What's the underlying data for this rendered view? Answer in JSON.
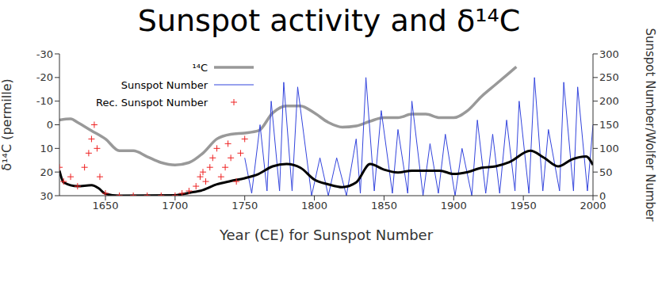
{
  "chart_data": {
    "type": "line",
    "title": "Sunspot activity and δ¹⁴C",
    "x_label": "Year (CE) for Sunspot Number",
    "y_label": "δ¹⁴C (permille)",
    "y2_label": "Sunspot Number/Wolfer Number",
    "xlim": [
      1617,
      2000
    ],
    "xticks": [
      1650,
      1700,
      1750,
      1800,
      1850,
      1900,
      1950,
      2000
    ],
    "ylim": [
      30,
      -30
    ],
    "yticks": [
      -30,
      -20,
      -10,
      0,
      10,
      20,
      30
    ],
    "y2lim": [
      0,
      300
    ],
    "y2ticks": [
      0,
      50,
      100,
      150,
      200,
      250,
      300
    ],
    "grid": false,
    "legend": "upper left",
    "series": [
      {
        "name": "¹⁴C",
        "color": "#999999",
        "type": "line",
        "x": [
          1617,
          1625,
          1630,
          1640,
          1650,
          1660,
          1670,
          1680,
          1690,
          1700,
          1710,
          1720,
          1730,
          1740,
          1750,
          1760,
          1770,
          1780,
          1790,
          1800,
          1810,
          1820,
          1830,
          1840,
          1850,
          1860,
          1870,
          1880,
          1890,
          1900,
          1910,
          1920,
          1930,
          1940,
          1945
        ],
        "values": [
          -2,
          -2.5,
          -1,
          2.5,
          6,
          11,
          11,
          13.5,
          16,
          17,
          16,
          12,
          6,
          4,
          3.5,
          2.5,
          -5,
          -8,
          -8,
          -5,
          -1,
          1,
          0.5,
          -1.5,
          -3,
          -3,
          -4.5,
          -4.5,
          -3,
          -3,
          -6,
          -12,
          -17,
          -22,
          -24.5
        ]
      },
      {
        "name": "Sunspot Number",
        "color": "#3344dd",
        "type": "line",
        "axis": "y2",
        "x": [
          1750,
          1755,
          1761,
          1766,
          1769,
          1775,
          1778,
          1784,
          1788,
          1798,
          1804,
          1810,
          1816,
          1823,
          1830,
          1833,
          1837,
          1843,
          1848,
          1856,
          1860,
          1867,
          1870,
          1878,
          1883,
          1889,
          1894,
          1901,
          1906,
          1913,
          1917,
          1923,
          1928,
          1933,
          1938,
          1944,
          1947,
          1954,
          1958,
          1964,
          1968,
          1976,
          1979,
          1986,
          1989,
          1996,
          2000
        ],
        "values": [
          80,
          5,
          150,
          10,
          200,
          10,
          240,
          10,
          230,
          0,
          80,
          0,
          80,
          0,
          120,
          5,
          250,
          10,
          180,
          5,
          140,
          5,
          200,
          0,
          110,
          5,
          130,
          0,
          100,
          0,
          160,
          5,
          130,
          5,
          160,
          10,
          200,
          5,
          250,
          10,
          140,
          10,
          240,
          10,
          230,
          10,
          150
        ]
      },
      {
        "name": "Rec. Sunspot Number",
        "color": "#ee2222",
        "type": "scatter",
        "marker": "plus",
        "axis": "y2",
        "x": [
          1617,
          1620,
          1625,
          1630,
          1635,
          1638,
          1640,
          1642,
          1644,
          1646,
          1650,
          1660,
          1670,
          1680,
          1690,
          1700,
          1705,
          1710,
          1715,
          1718,
          1720,
          1722,
          1725,
          1727,
          1730,
          1733,
          1736,
          1738,
          1740,
          1744,
          1747,
          1750
        ],
        "values": [
          60,
          30,
          40,
          20,
          60,
          90,
          120,
          150,
          100,
          40,
          5,
          0,
          0,
          0,
          0,
          0,
          5,
          10,
          20,
          40,
          50,
          30,
          60,
          80,
          100,
          40,
          60,
          110,
          80,
          30,
          90,
          120
        ]
      },
      {
        "color": "#000000",
        "type": "line",
        "axis": "y2",
        "x": [
          1617,
          1620,
          1630,
          1640,
          1645,
          1650,
          1660,
          1700,
          1710,
          1720,
          1730,
          1740,
          1750,
          1760,
          1770,
          1780,
          1790,
          1800,
          1810,
          1820,
          1830,
          1840,
          1850,
          1860,
          1870,
          1880,
          1890,
          1900,
          1910,
          1920,
          1930,
          1940,
          1955,
          1965,
          1975,
          1985,
          1995,
          2000
        ],
        "values": [
          53,
          28,
          20,
          22,
          16,
          4,
          0,
          1,
          6,
          12,
          24,
          31,
          37,
          46,
          62,
          67,
          59,
          34,
          24,
          18,
          28,
          67,
          55,
          49,
          53,
          53,
          53,
          46,
          50,
          59,
          62,
          71,
          95,
          80,
          62,
          77,
          83,
          65
        ]
      }
    ]
  }
}
